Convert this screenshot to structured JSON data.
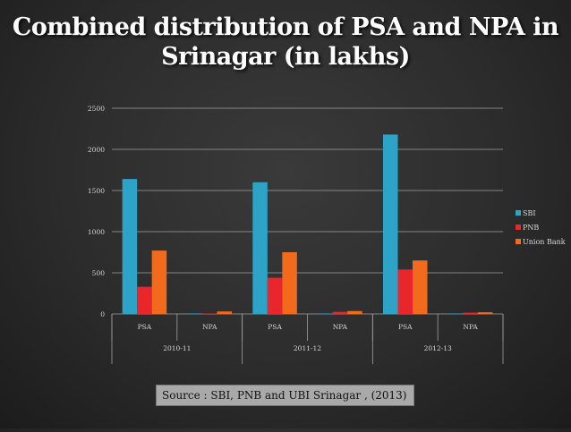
{
  "slide": {
    "title_line1": "Combined distribution of PSA and NPA in",
    "title_line2": "Srinagar (in lakhs)",
    "source": "Source : SBI, PNB and UBI Srinagar , (2013)"
  },
  "chart_data": {
    "type": "bar",
    "title": "",
    "xlabel": "",
    "ylabel": "",
    "ylim": [
      0,
      2500
    ],
    "yticks": [
      0,
      500,
      1000,
      1500,
      2000,
      2500
    ],
    "grid": true,
    "legend": "right",
    "categories": [
      "PSA",
      "NPA",
      "PSA",
      "NPA",
      "PSA",
      "NPA"
    ],
    "groups": [
      {
        "label": "2010-11",
        "categories": [
          "PSA",
          "NPA"
        ]
      },
      {
        "label": "2011-12",
        "categories": [
          "PSA",
          "NPA"
        ]
      },
      {
        "label": "2012-13",
        "categories": [
          "PSA",
          "NPA"
        ]
      }
    ],
    "series": [
      {
        "name": "SBI",
        "color": "#2ea3c8",
        "values": [
          1640,
          5,
          1600,
          5,
          2180,
          5
        ]
      },
      {
        "name": "PNB",
        "color": "#e8262c",
        "values": [
          330,
          5,
          440,
          25,
          540,
          15
        ]
      },
      {
        "name": "Union Bank",
        "color": "#f26a1b",
        "values": [
          770,
          30,
          750,
          35,
          650,
          20
        ]
      }
    ]
  }
}
